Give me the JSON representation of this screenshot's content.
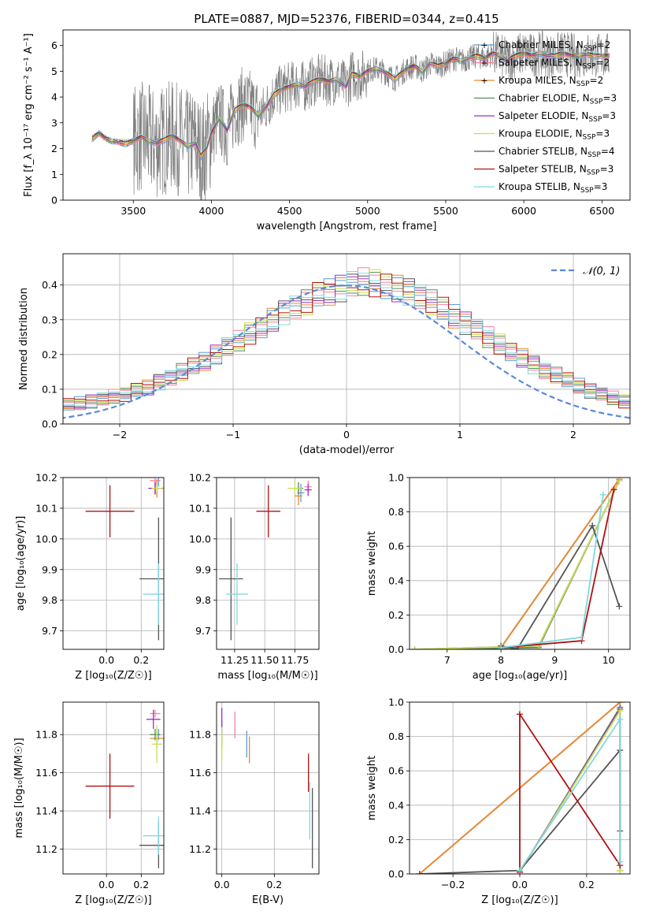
{
  "title": "PLATE=0887, MJD=52376, FIBERID=0344, z=0.415",
  "colors": {
    "Chabrier MILES": "#5aa0d8",
    "Salpeter MILES": "#ff7fa0",
    "Kroupa MILES": "#e8892a",
    "Chabrier ELODIE": "#5a8a5a",
    "Salpeter ELODIE": "#9b30c8",
    "Kroupa ELODIE": "#c8e050",
    "Chabrier STELIB": "#555555",
    "Salpeter STELIB": "#b01010",
    "Kroupa STELIB": "#7fd8e0",
    "data": "#808080",
    "normal": "#5a8ad8"
  },
  "chart_data": [
    {
      "type": "line",
      "xlabel": "wavelength [Angstrom, rest frame]",
      "ylabel": "Flux [f_λ 10⁻¹⁷ erg cm⁻² s⁻¹ A⁻¹]",
      "xlim": [
        3050,
        6680
      ],
      "ylim": [
        0,
        6.6
      ],
      "xticks": [
        3500,
        4000,
        4500,
        5000,
        5500,
        6000,
        6500
      ],
      "yticks": [
        0,
        1,
        2,
        3,
        4,
        5,
        6
      ],
      "legend_position": "top-right",
      "legend": [
        {
          "name": "Chabrier MILES",
          "nssp": "2"
        },
        {
          "name": "Salpeter MILES",
          "nssp": "2"
        },
        {
          "name": "Kroupa MILES",
          "nssp": "2"
        },
        {
          "name": "Chabrier ELODIE",
          "nssp": "3"
        },
        {
          "name": "Salpeter ELODIE",
          "nssp": "3"
        },
        {
          "name": "Kroupa ELODIE",
          "nssp": "3"
        },
        {
          "name": "Chabrier STELIB",
          "nssp": "4"
        },
        {
          "name": "Salpeter STELIB",
          "nssp": "3"
        },
        {
          "name": "Kroupa STELIB",
          "nssp": "3"
        }
      ],
      "model_x": [
        3240,
        3280,
        3320,
        3360,
        3400,
        3450,
        3500,
        3550,
        3600,
        3650,
        3700,
        3750,
        3800,
        3850,
        3900,
        3933,
        3968,
        4000,
        4050,
        4100,
        4150,
        4200,
        4250,
        4300,
        4350,
        4400,
        4450,
        4500,
        4550,
        4600,
        4650,
        4700,
        4750,
        4800,
        4861,
        4900,
        4950,
        5000,
        5050,
        5100,
        5175,
        5250,
        5300,
        5350,
        5400,
        5450,
        5500,
        5550,
        5600,
        5650,
        5700,
        5750,
        5800,
        5850,
        5893,
        5950,
        6000,
        6050,
        6100,
        6150,
        6200,
        6250,
        6300,
        6350,
        6400,
        6450,
        6500,
        6550
      ],
      "model_y": [
        2.4,
        2.6,
        2.4,
        2.3,
        2.25,
        2.2,
        2.3,
        2.45,
        2.3,
        2.2,
        2.35,
        2.5,
        2.3,
        2.1,
        2.2,
        1.7,
        2.0,
        2.6,
        3.2,
        2.7,
        3.5,
        3.7,
        3.6,
        3.3,
        3.6,
        4.1,
        4.3,
        4.4,
        4.5,
        4.4,
        4.6,
        4.7,
        4.6,
        4.7,
        4.4,
        4.9,
        4.8,
        5.0,
        5.1,
        5.0,
        4.7,
        5.1,
        5.2,
        5.0,
        5.3,
        5.2,
        5.3,
        5.5,
        5.4,
        5.5,
        5.6,
        5.5,
        5.7,
        5.6,
        5.4,
        5.6,
        5.7,
        5.6,
        5.7,
        5.6,
        5.6,
        5.7,
        5.6,
        5.6,
        5.65,
        5.6,
        5.6,
        5.6
      ]
    },
    {
      "type": "bar",
      "xlabel": "(data-model)/error",
      "ylabel": "Normed distribution",
      "xlim": [
        -2.5,
        2.5
      ],
      "ylim": [
        0,
        0.49
      ],
      "xticks": [
        -2,
        -1,
        0,
        1,
        2
      ],
      "yticks": [
        0.0,
        0.1,
        0.2,
        0.3,
        0.4
      ],
      "grid": true,
      "legend_position": "top-right",
      "legend": [
        "𝒩(0, 1)"
      ],
      "bin_width": 0.1,
      "base": [
        0.025,
        0.025,
        0.03,
        0.03,
        0.045,
        0.055,
        0.06,
        0.065,
        0.07,
        0.08,
        0.085,
        0.1,
        0.105,
        0.12,
        0.135,
        0.15,
        0.165,
        0.18,
        0.2,
        0.22,
        0.24,
        0.26,
        0.28,
        0.3,
        0.32,
        0.34,
        0.35,
        0.37,
        0.38,
        0.39,
        0.4,
        0.41,
        0.405,
        0.4,
        0.39,
        0.38,
        0.37,
        0.35,
        0.33,
        0.31,
        0.29,
        0.27,
        0.25,
        0.23,
        0.21,
        0.19,
        0.17,
        0.155,
        0.14,
        0.125,
        0.11,
        0.095,
        0.085,
        0.075,
        0.065,
        0.055,
        0.05,
        0.045,
        0.04,
        0.035,
        0.03,
        0.03,
        0.025,
        0.02,
        0.02,
        0.02,
        0.015,
        0.015,
        0.015,
        0.01,
        0.01,
        0.01
      ]
    },
    {
      "type": "scatter",
      "xlabel": "Z [log₁₀(Z/Z☉)]",
      "ylabel": "age  [log₁₀(age/yr)]",
      "xlim": [
        -0.25,
        0.33
      ],
      "ylim": [
        9.64,
        10.2
      ],
      "xticks": [
        0.0,
        0.2
      ],
      "yticks": [
        9.7,
        9.8,
        9.9,
        10.0,
        10.1,
        10.2
      ],
      "grid": true,
      "points": [
        {
          "x": 0.3,
          "y": 10.19,
          "xe": 0.01,
          "ye": 0.02,
          "model": "Chabrier MILES"
        },
        {
          "x": 0.28,
          "y": 10.19,
          "xe": 0.03,
          "ye": 0.02,
          "model": "Salpeter MILES"
        },
        {
          "x": 0.29,
          "y": 10.165,
          "xe": 0.04,
          "ye": 0.03,
          "model": "Kroupa MILES"
        },
        {
          "x": 0.28,
          "y": 10.165,
          "xe": 0.03,
          "ye": 0.02,
          "model": "Chabrier ELODIE"
        },
        {
          "x": 0.28,
          "y": 10.165,
          "xe": 0.04,
          "ye": 0.02,
          "model": "Salpeter ELODIE"
        },
        {
          "x": 0.29,
          "y": 10.165,
          "xe": 0.03,
          "ye": 0.01,
          "model": "Kroupa ELODIE"
        },
        {
          "x": 0.3,
          "y": 9.87,
          "xe": 0.11,
          "ye": 0.2,
          "model": "Chabrier STELIB"
        },
        {
          "x": 0.02,
          "y": 10.09,
          "xe": 0.14,
          "ye": 0.085,
          "model": "Salpeter STELIB"
        },
        {
          "x": 0.3,
          "y": 9.82,
          "xe": 0.09,
          "ye": 0.1,
          "model": "Kroupa STELIB"
        }
      ]
    },
    {
      "type": "scatter",
      "xlabel": "mass [log₁₀(M/M☉)]",
      "ylabel": "",
      "xlim": [
        11.1,
        11.95
      ],
      "ylim": [
        9.64,
        10.2
      ],
      "xticks": [
        11.25,
        11.5,
        11.75
      ],
      "yticks": [
        9.7,
        9.8,
        9.9,
        10.0,
        10.1,
        10.2
      ],
      "grid": true,
      "points": [
        {
          "x": 11.8,
          "y": 10.15,
          "xe": 0.03,
          "ye": 0.03,
          "model": "Chabrier MILES"
        },
        {
          "x": 11.86,
          "y": 10.17,
          "xe": 0.03,
          "ye": 0.02,
          "model": "Salpeter MILES"
        },
        {
          "x": 11.78,
          "y": 10.14,
          "xe": 0.03,
          "ye": 0.03,
          "model": "Kroupa MILES"
        },
        {
          "x": 11.78,
          "y": 10.165,
          "xe": 0.04,
          "ye": 0.02,
          "model": "Chabrier ELODIE"
        },
        {
          "x": 11.86,
          "y": 10.16,
          "xe": 0.03,
          "ye": 0.02,
          "model": "Salpeter ELODIE"
        },
        {
          "x": 11.75,
          "y": 10.165,
          "xe": 0.06,
          "ye": 0.02,
          "model": "Kroupa ELODIE"
        },
        {
          "x": 11.22,
          "y": 9.87,
          "xe": 0.1,
          "ye": 0.2,
          "model": "Chabrier STELIB"
        },
        {
          "x": 11.53,
          "y": 10.09,
          "xe": 0.1,
          "ye": 0.085,
          "model": "Salpeter STELIB"
        },
        {
          "x": 11.27,
          "y": 9.82,
          "xe": 0.09,
          "ye": 0.1,
          "model": "Kroupa STELIB"
        }
      ]
    },
    {
      "type": "line",
      "xlabel": "age  [log₁₀(age/yr)]",
      "ylabel": "mass weight",
      "xlim": [
        6.3,
        10.4
      ],
      "ylim": [
        0,
        1
      ],
      "xticks": [
        7,
        8,
        9,
        10
      ],
      "yticks": [
        0.0,
        0.2,
        0.4,
        0.6,
        0.8,
        1.0
      ],
      "grid": true,
      "series": [
        {
          "model": "Chabrier MILES",
          "x": [
            8.0,
            10.2
          ],
          "y": [
            0.01,
            0.99
          ]
        },
        {
          "model": "Salpeter MILES",
          "x": [
            8.0,
            10.2
          ],
          "y": [
            0.01,
            0.99
          ]
        },
        {
          "model": "Kroupa MILES",
          "x": [
            8.0,
            10.2
          ],
          "y": [
            0.01,
            0.99
          ]
        },
        {
          "model": "Chabrier ELODIE",
          "x": [
            6.4,
            8.7,
            10.2
          ],
          "y": [
            0.0,
            0.01,
            0.98
          ]
        },
        {
          "model": "Salpeter ELODIE",
          "x": [
            6.4,
            8.7,
            10.2
          ],
          "y": [
            0.0,
            0.02,
            0.98
          ]
        },
        {
          "model": "Kroupa ELODIE",
          "x": [
            6.4,
            8.7,
            10.2
          ],
          "y": [
            0.0,
            0.02,
            0.98
          ]
        },
        {
          "model": "Chabrier STELIB",
          "x": [
            8.0,
            8.3,
            9.7,
            10.2
          ],
          "y": [
            0.02,
            0.0,
            0.72,
            0.25
          ]
        },
        {
          "model": "Salpeter STELIB",
          "x": [
            8.0,
            9.5,
            10.1
          ],
          "y": [
            0.01,
            0.05,
            0.93
          ]
        },
        {
          "model": "Kroupa STELIB",
          "x": [
            8.0,
            9.5,
            9.9
          ],
          "y": [
            0.01,
            0.07,
            0.9
          ]
        }
      ]
    },
    {
      "type": "scatter",
      "xlabel": "Z [log₁₀(Z/Z☉)]",
      "ylabel": "mass [log₁₀(M/M☉)]",
      "xlim": [
        -0.25,
        0.33
      ],
      "ylim": [
        11.07,
        11.97
      ],
      "xticks": [
        0.0,
        0.2
      ],
      "yticks": [
        11.2,
        11.4,
        11.6,
        11.8
      ],
      "grid": true,
      "points": [
        {
          "x": 0.3,
          "y": 11.8,
          "xe": 0.01,
          "ye": 0.03,
          "model": "Chabrier MILES"
        },
        {
          "x": 0.28,
          "y": 11.91,
          "xe": 0.03,
          "ye": 0.02,
          "model": "Salpeter MILES"
        },
        {
          "x": 0.29,
          "y": 11.78,
          "xe": 0.04,
          "ye": 0.05,
          "model": "Kroupa MILES"
        },
        {
          "x": 0.28,
          "y": 11.8,
          "xe": 0.03,
          "ye": 0.03,
          "model": "Chabrier ELODIE"
        },
        {
          "x": 0.27,
          "y": 11.88,
          "xe": 0.04,
          "ye": 0.05,
          "model": "Salpeter ELODIE"
        },
        {
          "x": 0.29,
          "y": 11.75,
          "xe": 0.03,
          "ye": 0.1,
          "model": "Kroupa ELODIE"
        },
        {
          "x": 0.3,
          "y": 11.22,
          "xe": 0.11,
          "ye": 0.12,
          "model": "Chabrier STELIB"
        },
        {
          "x": 0.02,
          "y": 11.53,
          "xe": 0.14,
          "ye": 0.17,
          "model": "Salpeter STELIB"
        },
        {
          "x": 0.3,
          "y": 11.27,
          "xe": 0.09,
          "ye": 0.1,
          "model": "Kroupa STELIB"
        }
      ]
    },
    {
      "type": "scatter",
      "xlabel": "E(B-V)",
      "ylabel": "",
      "xlim": [
        -0.02,
        0.37
      ],
      "ylim": [
        11.07,
        11.97
      ],
      "xticks": [
        0.0,
        0.2
      ],
      "yticks": [
        11.2,
        11.4,
        11.6,
        11.8
      ],
      "grid": true,
      "points": [
        {
          "x": 0.095,
          "y": 11.75,
          "xe": 0,
          "ye": 0.07,
          "model": "Chabrier MILES"
        },
        {
          "x": 0.05,
          "y": 11.85,
          "xe": 0,
          "ye": 0.07,
          "model": "Salpeter MILES"
        },
        {
          "x": 0.105,
          "y": 11.72,
          "xe": 0,
          "ye": 0.07,
          "model": "Kroupa MILES"
        },
        {
          "x": 0.0,
          "y": 11.8,
          "xe": 0,
          "ye": 0.07,
          "model": "Chabrier ELODIE"
        },
        {
          "x": 0.0,
          "y": 11.87,
          "xe": 0,
          "ye": 0.07,
          "model": "Salpeter ELODIE"
        },
        {
          "x": 0.0,
          "y": 11.75,
          "xe": 0,
          "ye": 0.09,
          "model": "Kroupa ELODIE"
        },
        {
          "x": 0.345,
          "y": 11.31,
          "xe": 0,
          "ye": 0.21,
          "model": "Chabrier STELIB"
        },
        {
          "x": 0.33,
          "y": 11.6,
          "xe": 0,
          "ye": 0.1,
          "model": "Salpeter STELIB"
        },
        {
          "x": 0.335,
          "y": 11.4,
          "xe": 0,
          "ye": 0.15,
          "model": "Kroupa STELIB"
        }
      ]
    },
    {
      "type": "line",
      "xlabel": "Z [log₁₀(Z/Z☉)]",
      "ylabel": "mass weight",
      "xlim": [
        -0.33,
        0.33
      ],
      "ylim": [
        0,
        1
      ],
      "xticks": [
        -0.2,
        0.0,
        0.2
      ],
      "yticks": [
        0.0,
        0.2,
        0.4,
        0.6,
        0.8,
        1.0
      ],
      "grid": true,
      "series": [
        {
          "model": "Chabrier MILES",
          "x": [
            -0.3,
            0.3
          ],
          "y": [
            0.0,
            1.0
          ]
        },
        {
          "model": "Salpeter MILES",
          "x": [
            -0.3,
            0.3
          ],
          "y": [
            0.0,
            1.0
          ]
        },
        {
          "model": "Kroupa MILES",
          "x": [
            -0.3,
            0.3
          ],
          "y": [
            0.0,
            1.0
          ]
        },
        {
          "model": "Chabrier ELODIE",
          "x": [
            0.0,
            0.3,
            0.3
          ],
          "y": [
            0.01,
            0.97,
            0.02
          ]
        },
        {
          "model": "Salpeter ELODIE",
          "x": [
            0.0,
            0.3,
            0.3
          ],
          "y": [
            0.01,
            0.96,
            0.02
          ]
        },
        {
          "model": "Kroupa ELODIE",
          "x": [
            0.0,
            0.3,
            0.3
          ],
          "y": [
            0.01,
            0.95,
            0.02
          ]
        },
        {
          "model": "Chabrier STELIB",
          "x": [
            -0.3,
            0.0,
            0.3,
            0.3
          ],
          "y": [
            0.0,
            0.02,
            0.72,
            0.25
          ]
        },
        {
          "model": "Salpeter STELIB",
          "x": [
            0.0,
            0.0,
            0.3
          ],
          "y": [
            0.01,
            0.93,
            0.05
          ]
        },
        {
          "model": "Kroupa STELIB",
          "x": [
            0.0,
            0.3,
            0.3
          ],
          "y": [
            0.02,
            0.9,
            0.07
          ]
        }
      ]
    }
  ]
}
